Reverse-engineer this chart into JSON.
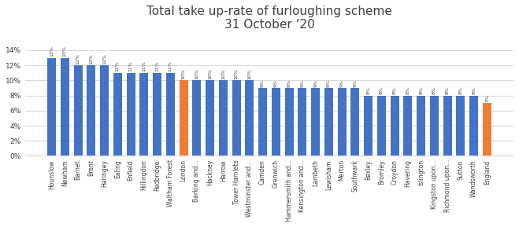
{
  "title": "Total take up-rate of furloughing scheme\n31 October ’20",
  "categories": [
    "Hounslow",
    "Newham",
    "Barnet",
    "Brent",
    "Haringey",
    "Ealing",
    "Enfield",
    "Hillingdon",
    "Redbridge",
    "Waltham Forest",
    "London",
    "Barking and...",
    "Hackney",
    "Harrow",
    "Tower Hamlets",
    "Westminster and...",
    "Camden",
    "Grenwich",
    "Hammersmith and...",
    "Kensington and...",
    "Lambeth",
    "Lewisham",
    "Merton",
    "Southwark",
    "Bexley",
    "Bromley",
    "Croydon",
    "Havering",
    "Islington",
    "Kingston upon...",
    "Richmond upon...",
    "Sutton",
    "Wandsworth",
    "England"
  ],
  "values": [
    13,
    13,
    12,
    12,
    12,
    11,
    11,
    11,
    11,
    11,
    10,
    10,
    10,
    10,
    10,
    10,
    9,
    9,
    9,
    9,
    9,
    9,
    9,
    9,
    8,
    8,
    8,
    8,
    8,
    8,
    8,
    8,
    8,
    7
  ],
  "colors": [
    "#4472c4",
    "#4472c4",
    "#4472c4",
    "#4472c4",
    "#4472c4",
    "#4472c4",
    "#4472c4",
    "#4472c4",
    "#4472c4",
    "#4472c4",
    "#ed7d31",
    "#4472c4",
    "#4472c4",
    "#4472c4",
    "#4472c4",
    "#4472c4",
    "#4472c4",
    "#4472c4",
    "#4472c4",
    "#4472c4",
    "#4472c4",
    "#4472c4",
    "#4472c4",
    "#4472c4",
    "#4472c4",
    "#4472c4",
    "#4472c4",
    "#4472c4",
    "#4472c4",
    "#4472c4",
    "#4472c4",
    "#4472c4",
    "#4472c4",
    "#ed7d31"
  ],
  "ylim": [
    0,
    16
  ],
  "yticks": [
    0,
    2,
    4,
    6,
    8,
    10,
    12,
    14
  ],
  "ytick_labels": [
    "0%",
    "2%",
    "4%",
    "6%",
    "8%",
    "10%",
    "12%",
    "14%"
  ],
  "bar_label_fontsize": 4.5,
  "xlabel_fontsize": 5.5,
  "ytick_fontsize": 6.5,
  "title_fontsize": 11,
  "background_color": "#ffffff",
  "grid_color": "#d9d9d9",
  "bar_width": 0.65,
  "title_color": "#404040",
  "label_color": "#404040"
}
